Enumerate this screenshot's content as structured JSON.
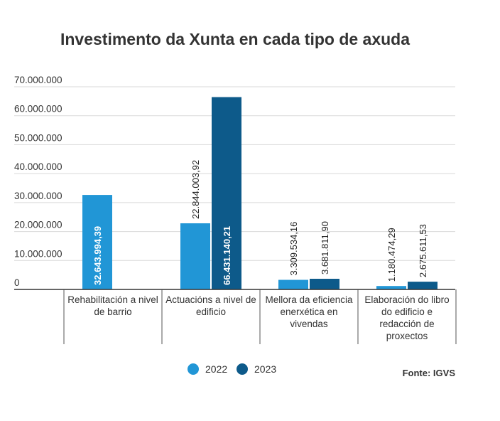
{
  "chart_data": {
    "type": "bar",
    "title": "Investimento da Xunta en cada tipo de axuda",
    "xlabel": "",
    "ylabel": "",
    "ylim": [
      0,
      70000000
    ],
    "yticks": [
      0,
      10000000,
      20000000,
      30000000,
      40000000,
      50000000,
      60000000,
      70000000
    ],
    "ytick_labels": [
      "0",
      "10.000.000",
      "20.000.000",
      "30.000.000",
      "40.000.000",
      "50.000.000",
      "60.000.000",
      "70.000.000"
    ],
    "grid": true,
    "legend_position": "bottom-center",
    "categories": [
      [
        "Rehabilitación a nivel",
        "de barrio"
      ],
      [
        "Actuacións a nivel de",
        "edificio"
      ],
      [
        "Mellora da eficiencia",
        "enerxética en",
        "vivendas"
      ],
      [
        "Elaboración do libro",
        "do edificio e",
        "redacción de",
        "proxectos"
      ]
    ],
    "series": [
      {
        "name": "2022",
        "color": "#2196d6",
        "values": [
          32643994.39,
          22844003.92,
          3309534.16,
          1180474.29
        ],
        "labels": [
          "32.643.994,39",
          "22.844.003,92",
          "3.309.534,16",
          "1.180.474,29"
        ]
      },
      {
        "name": "2023",
        "color": "#0d5a8a",
        "values": [
          null,
          66431140.21,
          3681811.9,
          2675611.53
        ],
        "labels": [
          "",
          "66.431.140,21",
          "3.681.811,90",
          "2.675.611,53"
        ]
      }
    ],
    "source": "Fonte: IGVS"
  }
}
